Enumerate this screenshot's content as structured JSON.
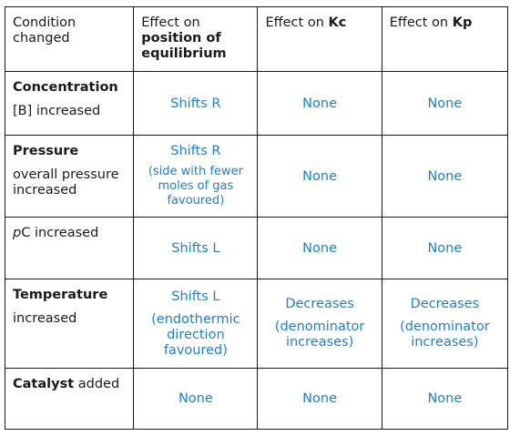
{
  "headers": {
    "condition": "Condition changed",
    "position_prefix": "Effect on ",
    "position_bold": "position of equilibrium",
    "kc_prefix": "Effect on ",
    "kc_bold": "Kc",
    "kp_prefix": "Effect on ",
    "kp_bold": "Kp"
  },
  "rows": {
    "concentration": {
      "label": "Concentration",
      "sub": "[B] increased",
      "position": "Shifts R",
      "kc": "None",
      "kp": "None"
    },
    "pressure": {
      "label": "Pressure",
      "sub": "overall pressure increased",
      "position": "Shifts R",
      "position_note": "(side with fewer moles of gas favoured)",
      "kc": "None",
      "kp": "None"
    },
    "partial": {
      "sub_italic": "p",
      "sub_rest": "C increased",
      "position": "Shifts L",
      "kc": "None",
      "kp": "None"
    },
    "temperature": {
      "label": "Temperature",
      "sub": "increased",
      "position": "Shifts L",
      "position_note": "(endothermic direction favoured)",
      "kc": "Decreases",
      "kc_note": "(denominator increases)",
      "kp": "Decreases",
      "kp_note": "(denominator increases)"
    },
    "catalyst": {
      "label": "Catalyst",
      "sub": " added",
      "position": "None",
      "kc": "None",
      "kp": "None"
    }
  },
  "colors": {
    "value_text": "#1e7fc8",
    "border": "#1a1a1a"
  }
}
